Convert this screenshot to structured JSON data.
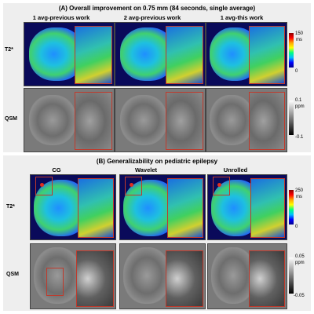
{
  "sectionA": {
    "title": "(A) Overall improvement on 0.75 mm (84 seconds, single average)",
    "columns": [
      "1 avg-previous work",
      "2 avg-previous work",
      "1 avg-this work"
    ],
    "rows": [
      "T2*",
      "QSM"
    ],
    "t2_colorbar": {
      "max": "150",
      "unit": "ms",
      "min": "0"
    },
    "qsm_colorbar": {
      "max": "0.1",
      "unit": "ppm",
      "min": "-0.1"
    }
  },
  "sectionB": {
    "title": "(B) Generalizability on pediatric epilepsy",
    "columns": [
      "CG",
      "Wavelet",
      "Unrolled"
    ],
    "rows": [
      "T2*",
      "QSM"
    ],
    "t2_colorbar": {
      "max": "250",
      "unit": "ms",
      "min": "0"
    },
    "qsm_colorbar": {
      "max": "0.05",
      "unit": "ppm",
      "min": "-0.05"
    }
  },
  "colors": {
    "zoom_border": "#c0392b",
    "background": "#eeeeee"
  }
}
